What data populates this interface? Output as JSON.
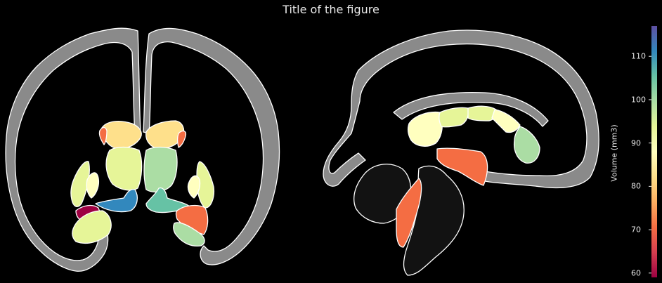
{
  "figure": {
    "title": "Title of the figure"
  },
  "colorbar": {
    "label": "Volume (mm3)",
    "min": 59,
    "max": 117,
    "ticks": [
      "60",
      "70",
      "80",
      "90",
      "100",
      "110"
    ],
    "colormap": [
      "#9e0142",
      "#d53e4f",
      "#f46d43",
      "#fdae61",
      "#fee08b",
      "#ffffbf",
      "#e6f598",
      "#abdda4",
      "#66c2a5",
      "#3288bd",
      "#5e4fa2"
    ]
  },
  "colors": {
    "background": "#000000",
    "cortex": "#8a8a8a",
    "outline": "#ffffff",
    "brainstem": "#121212"
  }
}
